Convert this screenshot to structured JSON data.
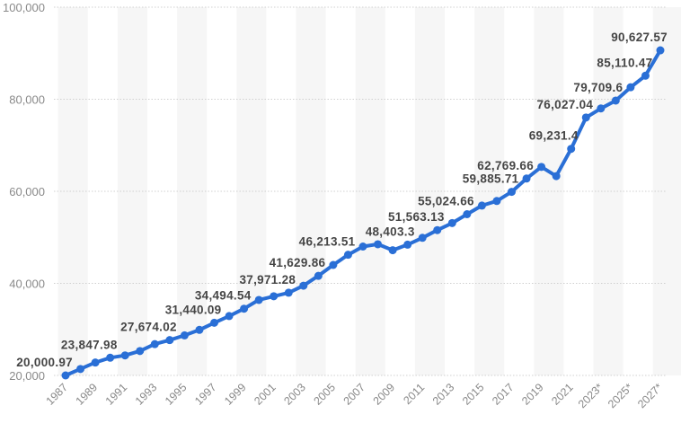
{
  "chart_data": {
    "type": "line",
    "title": "",
    "xlabel": "",
    "ylabel": "",
    "ylim": [
      20000,
      100000
    ],
    "yticks": [
      20000,
      40000,
      60000,
      80000,
      100000
    ],
    "ytick_labels": [
      "20,000",
      "40,000",
      "60,000",
      "80,000",
      "100,000"
    ],
    "grid": "horizontal dotted",
    "legend": "none",
    "colors": {
      "line": "#2a6fd6",
      "band": "#f6f6f6",
      "grid": "#d0d0d0"
    },
    "x": [
      1987,
      1988,
      1989,
      1990,
      1991,
      1992,
      1993,
      1994,
      1995,
      1996,
      1997,
      1998,
      1999,
      2000,
      2001,
      2002,
      2003,
      2004,
      2005,
      2006,
      2007,
      2008,
      2009,
      2010,
      2011,
      2012,
      2013,
      2014,
      2015,
      2016,
      2017,
      2018,
      2019,
      2020,
      2021,
      2022,
      2023,
      2024,
      2025,
      2026,
      2027
    ],
    "xtick_labels": [
      "1987",
      "1989",
      "1991",
      "1993",
      "1995",
      "1997",
      "1999",
      "2001",
      "2003",
      "2005",
      "2007",
      "2009",
      "2011",
      "2013",
      "2015",
      "2017",
      "2019",
      "2021",
      "2023*",
      "2025*",
      "2027*"
    ],
    "values": [
      20000.97,
      21400,
      22800,
      23847.98,
      24350,
      25300,
      26800,
      27674.02,
      28700,
      29900,
      31440.09,
      32900,
      34494.54,
      36400,
      37200,
      37971.28,
      39500,
      41629.86,
      44000,
      46213.51,
      48000,
      48500,
      47200,
      48403.3,
      49900,
      51563.13,
      53100,
      55024.66,
      56900,
      57900,
      59885.71,
      62769.66,
      65300,
      63300,
      69231.4,
      76027.04,
      78000,
      79709.6,
      82600,
      85110.47,
      90627.57
    ],
    "data_labels": [
      {
        "year": 1987,
        "text": "20,000.97"
      },
      {
        "year": 1990,
        "text": "23,847.98"
      },
      {
        "year": 1994,
        "text": "27,674.02"
      },
      {
        "year": 1997,
        "text": "31,440.09"
      },
      {
        "year": 1999,
        "text": "34,494.54"
      },
      {
        "year": 2002,
        "text": "37,971.28"
      },
      {
        "year": 2004,
        "text": "41,629.86"
      },
      {
        "year": 2006,
        "text": "46,213.51"
      },
      {
        "year": 2010,
        "text": "48,403.3"
      },
      {
        "year": 2012,
        "text": "51,563.13"
      },
      {
        "year": 2014,
        "text": "55,024.66"
      },
      {
        "year": 2017,
        "text": "59,885.71"
      },
      {
        "year": 2018,
        "text": "62,769.66"
      },
      {
        "year": 2021,
        "text": "69,231.4"
      },
      {
        "year": 2022,
        "text": "76,027.04"
      },
      {
        "year": 2024,
        "text": "79,709.6"
      },
      {
        "year": 2026,
        "text": "85,110.47"
      },
      {
        "year": 2027,
        "text": "90,627.57"
      }
    ]
  }
}
